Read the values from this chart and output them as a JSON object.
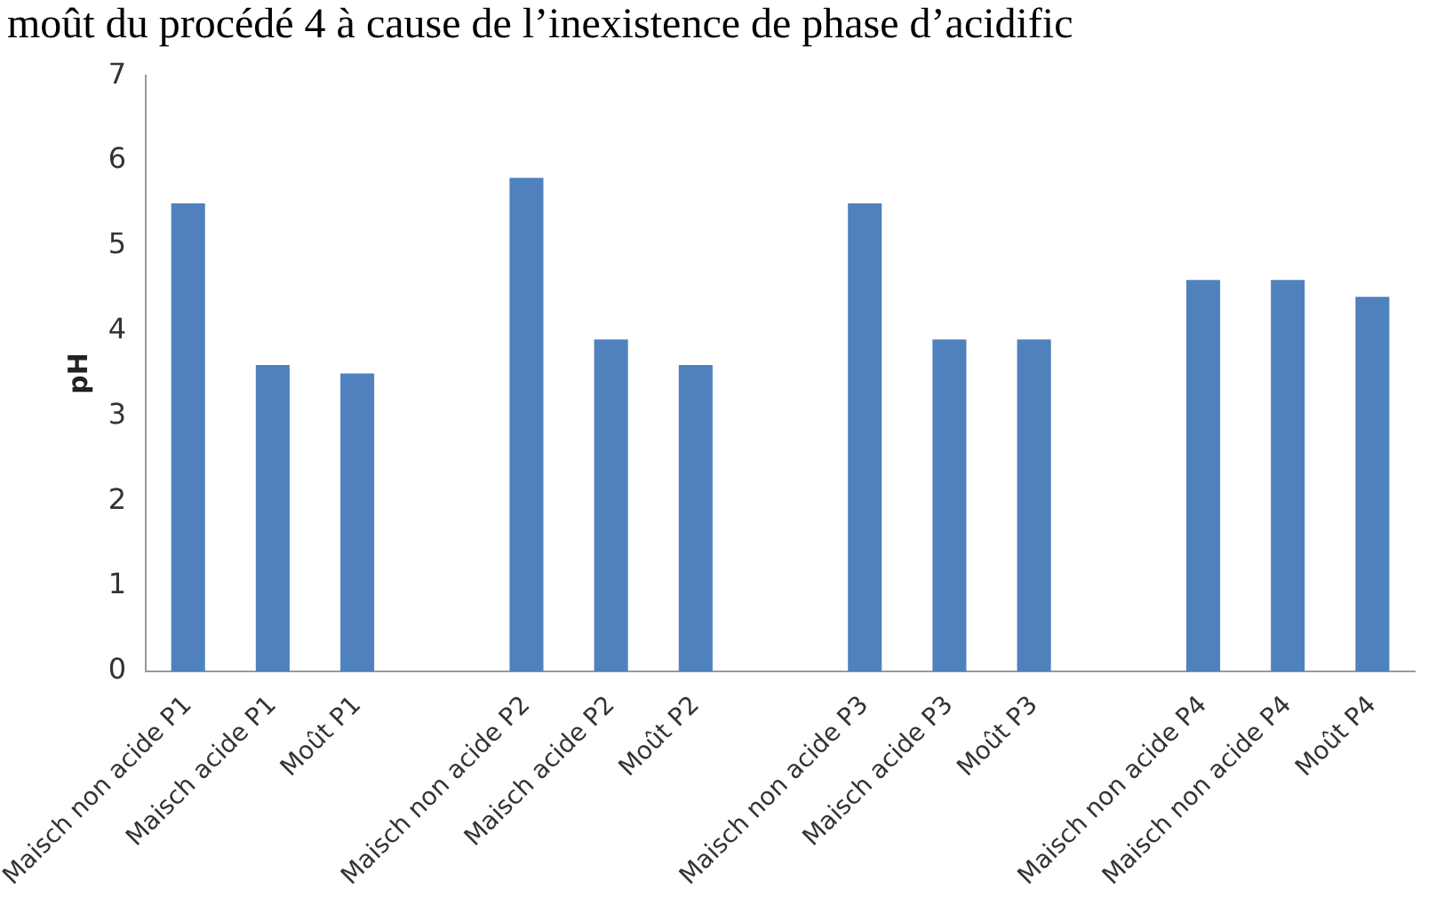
{
  "chart_data": {
    "type": "bar",
    "ylabel": "pH",
    "annotations": [
      "moût du procédé 4 à cause de l’inexistence de phase d’acidific"
    ],
    "categories": [
      "Maisch non acide P1",
      "Maisch acide P1",
      "Moût P1",
      null,
      "Maisch non acide P2",
      "Maisch acide P2",
      "Moût P2",
      null,
      "Maisch non acide P3",
      "Maisch acide P3",
      "Moût P3",
      null,
      "Maisch non acide P4",
      "Maisch non acide P4",
      "Moût P4"
    ],
    "values": [
      5.5,
      3.6,
      3.5,
      null,
      5.8,
      3.9,
      3.6,
      null,
      5.5,
      3.9,
      3.9,
      null,
      4.6,
      4.6,
      4.4
    ],
    "color": "#4f81bd",
    "ylim": [
      0,
      7
    ],
    "yticks": [
      0,
      1,
      2,
      3,
      4,
      5,
      6,
      7
    ],
    "grid": false,
    "legend": false
  }
}
